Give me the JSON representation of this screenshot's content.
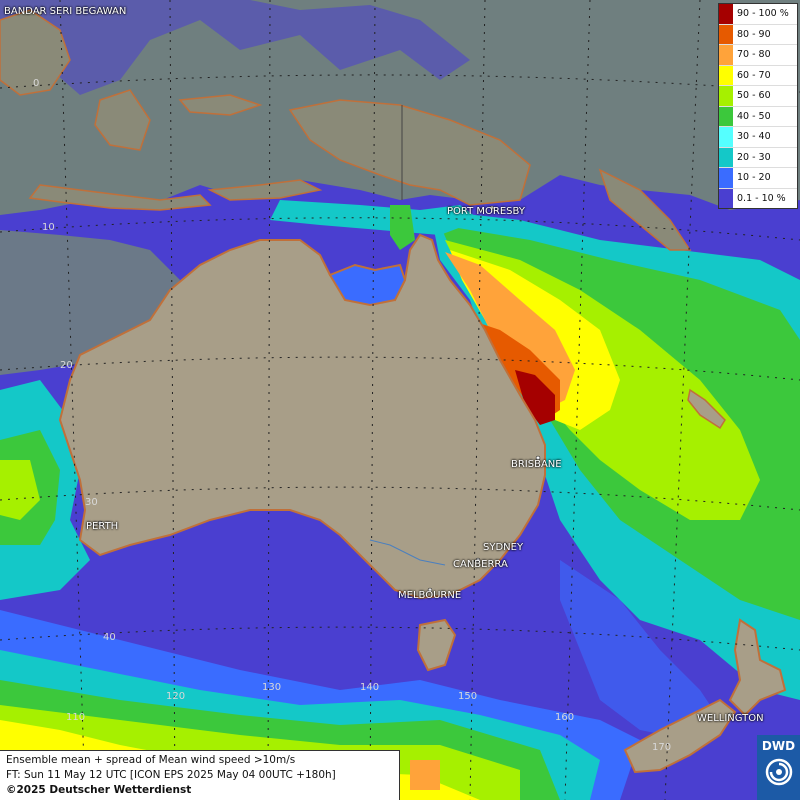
{
  "legend": {
    "items": [
      {
        "label": "90 - 100 %",
        "color": "#a50000"
      },
      {
        "label": "80 - 90",
        "color": "#e65a00"
      },
      {
        "label": "70 - 80",
        "color": "#ffa33a"
      },
      {
        "label": "60 - 70",
        "color": "#ffff00"
      },
      {
        "label": "50 - 60",
        "color": "#a6f000"
      },
      {
        "label": "40 - 50",
        "color": "#3cc83c"
      },
      {
        "label": "30 - 40",
        "color": "#55ffff"
      },
      {
        "label": "20 - 30",
        "color": "#14c8c8"
      },
      {
        "label": "10 - 20",
        "color": "#3a6cff"
      },
      {
        "label": "0.1 - 10 %",
        "color": "#4a3fd0"
      }
    ]
  },
  "cities": {
    "bandar": "BANDAR SERI BEGAWAN",
    "port_moresby": "PORT MORESBY",
    "brisbane": "BRISBANE",
    "perth": "PERTH",
    "sydney": "SYDNEY",
    "canberra": "CANBERRA",
    "melbourne": "MELBOURNE",
    "wellington": "WELLINGTON"
  },
  "grid_labels": {
    "lat_0": "0",
    "lat_10": "10",
    "lat_20": "20",
    "lat_30": "30",
    "lat_40": "40",
    "lon_110": "110",
    "lon_120": "120",
    "lon_130": "130",
    "lon_140": "140",
    "lon_150": "150",
    "lon_160": "160",
    "lon_170": "170"
  },
  "info": {
    "title": "Ensemble mean + spread of Mean wind speed >10m/s",
    "forecast": "FT: Sun 11 May 12 UTC [ICON EPS 2025 May 04 00UTC +180h]",
    "copyright": "©2025 Deutscher Wetterdienst"
  },
  "logo": {
    "text": "DWD"
  },
  "colors": {
    "land": "#a89e88",
    "coast": "#c0703a",
    "ocean_low": "#4a3fd0",
    "gray_sea": "#6f7f7f"
  }
}
